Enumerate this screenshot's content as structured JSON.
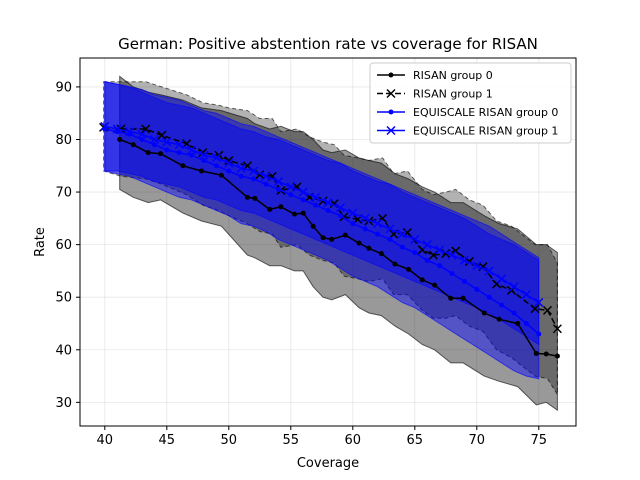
{
  "chart_data": {
    "type": "line",
    "title": "German: Positive abstention rate vs coverage for RISAN",
    "xlabel": "Coverage",
    "ylabel": "Rate",
    "xlim": [
      38,
      78
    ],
    "ylim": [
      25.5,
      95.5
    ],
    "xticks": [
      40,
      45,
      50,
      55,
      60,
      65,
      70,
      75
    ],
    "yticks": [
      30,
      40,
      50,
      60,
      70,
      80,
      90
    ],
    "grid": true,
    "legend_position": "top-right",
    "series": [
      {
        "name": "RISAN group 0",
        "color": "#000000",
        "marker": "dot",
        "linestyle": "solid",
        "x": [
          41.2,
          42.3,
          43.5,
          44.5,
          46.3,
          47.8,
          49.4,
          51.5,
          52.1,
          53.3,
          54.2,
          55.3,
          56.0,
          56.8,
          57.6,
          58.3,
          59.4,
          60.5,
          61.3,
          62.3,
          63.4,
          64.5,
          65.6,
          66.6,
          67.9,
          68.9,
          70.6,
          71.8,
          73.3,
          74.8,
          75.6,
          76.5
        ],
        "y": [
          80.0,
          79.0,
          77.5,
          77.3,
          75.0,
          74.0,
          73.2,
          69.0,
          68.8,
          66.7,
          67.2,
          65.8,
          66.0,
          63.5,
          61.3,
          61.0,
          61.8,
          60.3,
          59.3,
          58.3,
          56.3,
          55.3,
          53.3,
          52.3,
          49.8,
          49.8,
          47.0,
          45.8,
          45.0,
          39.3,
          39.2,
          38.8
        ]
      },
      {
        "name": "RISAN group 1",
        "color": "#000000",
        "marker": "x",
        "linestyle": "dashed",
        "x": [
          39.9,
          41.3,
          43.3,
          44.6,
          46.6,
          47.9,
          49.2,
          50.0,
          51.5,
          52.5,
          53.5,
          54.2,
          55.5,
          56.5,
          57.6,
          58.5,
          59.3,
          60.4,
          61.3,
          62.4,
          63.3,
          64.4,
          65.6,
          66.5,
          67.5,
          68.3,
          69.4,
          70.5,
          71.6,
          72.8,
          74.7,
          75.7,
          76.5
        ],
        "y": [
          82.3,
          82.0,
          82.0,
          80.8,
          79.2,
          77.5,
          77.0,
          76.0,
          75.0,
          73.3,
          73.0,
          70.3,
          71.0,
          69.0,
          68.3,
          67.8,
          65.3,
          64.8,
          64.5,
          65.0,
          62.0,
          62.3,
          59.0,
          58.0,
          58.3,
          58.8,
          56.8,
          55.8,
          52.5,
          51.3,
          47.8,
          47.5,
          44.0
        ]
      },
      {
        "name": "EQUISCALE RISAN group 0",
        "color": "#0000ff",
        "marker": "dot",
        "linestyle": "solid",
        "x": [
          40.0,
          41.0,
          42.0,
          43.0,
          44.0,
          45.0,
          46.0,
          47.0,
          48.0,
          49.0,
          50.0,
          51.0,
          52.0,
          53.0,
          54.0,
          55.0,
          56.0,
          57.0,
          58.0,
          59.0,
          60.0,
          61.0,
          62.0,
          63.0,
          64.0,
          65.0,
          66.0,
          67.0,
          68.0,
          69.0,
          70.0,
          71.0,
          72.0,
          73.0,
          74.0,
          75.0
        ],
        "y": [
          82.0,
          81.5,
          81.0,
          80.0,
          79.0,
          78.0,
          77.5,
          77.0,
          76.0,
          75.0,
          74.0,
          73.0,
          72.5,
          71.5,
          70.5,
          69.5,
          68.5,
          67.5,
          66.5,
          65.5,
          64.0,
          63.0,
          62.0,
          61.0,
          59.5,
          58.5,
          57.0,
          56.0,
          54.5,
          53.0,
          51.5,
          50.0,
          48.5,
          47.0,
          45.0,
          43.0
        ]
      },
      {
        "name": "EQUISCALE RISAN group 1",
        "color": "#0000ff",
        "marker": "x",
        "linestyle": "solid",
        "x": [
          40.0,
          41.0,
          42.0,
          43.0,
          44.0,
          45.0,
          46.0,
          47.0,
          48.0,
          49.0,
          50.0,
          51.0,
          52.0,
          53.0,
          54.0,
          55.0,
          56.0,
          57.0,
          58.0,
          59.0,
          60.0,
          61.0,
          62.0,
          63.0,
          64.0,
          65.0,
          66.0,
          67.0,
          68.0,
          69.0,
          70.0,
          71.0,
          72.0,
          73.0,
          74.0,
          75.0
        ],
        "y": [
          82.5,
          82.0,
          81.5,
          81.0,
          80.0,
          79.5,
          79.0,
          78.0,
          77.0,
          76.5,
          75.5,
          74.5,
          74.0,
          73.0,
          72.0,
          71.0,
          70.0,
          69.0,
          68.0,
          67.0,
          66.0,
          65.0,
          64.0,
          63.0,
          62.0,
          61.0,
          60.0,
          59.0,
          58.0,
          57.0,
          56.0,
          55.0,
          53.5,
          52.0,
          50.5,
          49.0
        ]
      }
    ],
    "bands": [
      {
        "color": "#000000",
        "opacity": 0.4,
        "x": [
          41.2,
          42.3,
          43.5,
          44.5,
          46.3,
          47.8,
          49.4,
          51.5,
          52.1,
          53.3,
          54.2,
          55.3,
          56.0,
          56.8,
          57.6,
          58.3,
          59.4,
          60.5,
          61.3,
          62.3,
          63.4,
          64.5,
          65.6,
          66.6,
          67.9,
          68.9,
          70.6,
          71.8,
          73.3,
          74.8,
          75.6,
          76.5
        ],
        "lower": [
          70.5,
          69.0,
          68.0,
          68.5,
          66.0,
          64.5,
          63.5,
          58.0,
          57.5,
          56.0,
          56.0,
          55.0,
          55.0,
          52.0,
          50.0,
          49.5,
          50.5,
          48.0,
          47.0,
          46.5,
          44.5,
          43.0,
          41.0,
          40.0,
          37.5,
          37.5,
          35.0,
          34.0,
          33.0,
          29.5,
          30.0,
          28.5
        ],
        "upper": [
          92.0,
          90.0,
          89.0,
          88.5,
          87.5,
          86.0,
          85.5,
          84.0,
          83.0,
          82.0,
          82.5,
          81.5,
          81.5,
          80.0,
          78.0,
          77.5,
          78.0,
          76.5,
          76.0,
          75.5,
          73.5,
          72.5,
          71.0,
          70.0,
          68.0,
          68.0,
          65.5,
          64.0,
          63.0,
          60.0,
          60.0,
          58.5
        ]
      },
      {
        "color": "#000000",
        "opacity": 0.3,
        "x": [
          39.9,
          41.3,
          43.3,
          44.6,
          46.6,
          47.9,
          49.2,
          50.0,
          51.5,
          52.5,
          53.5,
          54.2,
          55.5,
          56.5,
          57.6,
          58.5,
          59.3,
          60.4,
          61.3,
          62.4,
          63.3,
          64.4,
          65.6,
          66.5,
          67.5,
          68.3,
          69.4,
          70.5,
          71.6,
          72.8,
          74.7,
          75.7,
          76.5
        ],
        "lower": [
          74.0,
          73.0,
          72.5,
          71.5,
          69.5,
          67.5,
          66.5,
          65.5,
          64.0,
          62.5,
          62.0,
          59.5,
          60.0,
          58.0,
          57.0,
          56.5,
          54.0,
          53.5,
          53.0,
          53.5,
          50.5,
          50.5,
          47.5,
          46.0,
          46.0,
          46.5,
          44.5,
          43.5,
          40.0,
          38.5,
          35.0,
          34.5,
          31.5
        ],
        "upper": [
          91.0,
          91.0,
          91.0,
          90.0,
          88.5,
          87.0,
          86.5,
          86.0,
          85.5,
          84.0,
          84.0,
          81.5,
          82.0,
          80.5,
          79.5,
          79.0,
          77.0,
          76.5,
          76.0,
          76.5,
          73.5,
          74.0,
          70.5,
          69.5,
          70.0,
          70.5,
          68.5,
          67.5,
          64.5,
          63.5,
          60.0,
          60.0,
          56.5
        ]
      },
      {
        "color": "#0000ff",
        "opacity": 0.45,
        "x": [
          40.0,
          41.0,
          42.0,
          43.0,
          44.0,
          45.0,
          46.0,
          47.0,
          48.0,
          49.0,
          50.0,
          51.0,
          52.0,
          53.0,
          54.0,
          55.0,
          56.0,
          57.0,
          58.0,
          59.0,
          60.0,
          61.0,
          62.0,
          63.0,
          64.0,
          65.0,
          66.0,
          67.0,
          68.0,
          69.0,
          70.0,
          71.0,
          72.0,
          73.0,
          74.0,
          75.0
        ],
        "lower": [
          74.0,
          73.5,
          73.0,
          72.0,
          71.0,
          70.0,
          69.0,
          68.5,
          67.5,
          66.5,
          65.5,
          64.0,
          63.5,
          62.5,
          61.0,
          60.0,
          59.0,
          58.0,
          57.0,
          55.5,
          54.0,
          53.0,
          52.0,
          50.5,
          49.0,
          48.0,
          46.5,
          45.0,
          43.5,
          42.0,
          40.5,
          39.0,
          37.5,
          36.0,
          35.0,
          34.5
        ],
        "upper": [
          91.0,
          90.5,
          90.0,
          89.0,
          88.0,
          87.0,
          86.5,
          86.0,
          85.0,
          84.0,
          83.0,
          82.0,
          81.5,
          80.5,
          80.0,
          79.0,
          78.0,
          77.0,
          76.0,
          75.5,
          74.0,
          73.0,
          72.0,
          71.5,
          70.0,
          69.0,
          68.0,
          67.0,
          66.0,
          65.0,
          63.5,
          62.0,
          61.0,
          60.0,
          58.5,
          57.0
        ]
      },
      {
        "color": "#0000ff",
        "opacity": 0.45,
        "x": [
          40.0,
          41.0,
          42.0,
          43.0,
          44.0,
          45.0,
          46.0,
          47.0,
          48.0,
          49.0,
          50.0,
          51.0,
          52.0,
          53.0,
          54.0,
          55.0,
          56.0,
          57.0,
          58.0,
          59.0,
          60.0,
          61.0,
          62.0,
          63.0,
          64.0,
          65.0,
          66.0,
          67.0,
          68.0,
          69.0,
          70.0,
          71.0,
          72.0,
          73.0,
          74.0,
          75.0
        ],
        "lower": [
          74.0,
          74.0,
          73.5,
          73.0,
          72.0,
          71.5,
          71.0,
          70.0,
          69.0,
          68.5,
          67.5,
          66.5,
          66.0,
          65.0,
          64.0,
          63.0,
          62.0,
          61.0,
          60.0,
          59.0,
          58.0,
          57.0,
          56.0,
          55.0,
          54.0,
          53.0,
          52.0,
          51.0,
          50.0,
          49.0,
          48.0,
          47.0,
          45.5,
          44.0,
          42.5,
          41.0
        ],
        "upper": [
          91.0,
          90.5,
          90.0,
          89.5,
          88.5,
          88.0,
          87.5,
          86.5,
          85.5,
          85.0,
          84.0,
          83.0,
          82.5,
          81.5,
          80.5,
          79.5,
          78.5,
          77.5,
          76.5,
          75.5,
          74.5,
          73.5,
          72.5,
          71.5,
          70.5,
          69.5,
          68.5,
          67.5,
          66.5,
          65.5,
          64.5,
          63.5,
          62.0,
          60.5,
          59.0,
          57.5
        ]
      }
    ]
  }
}
